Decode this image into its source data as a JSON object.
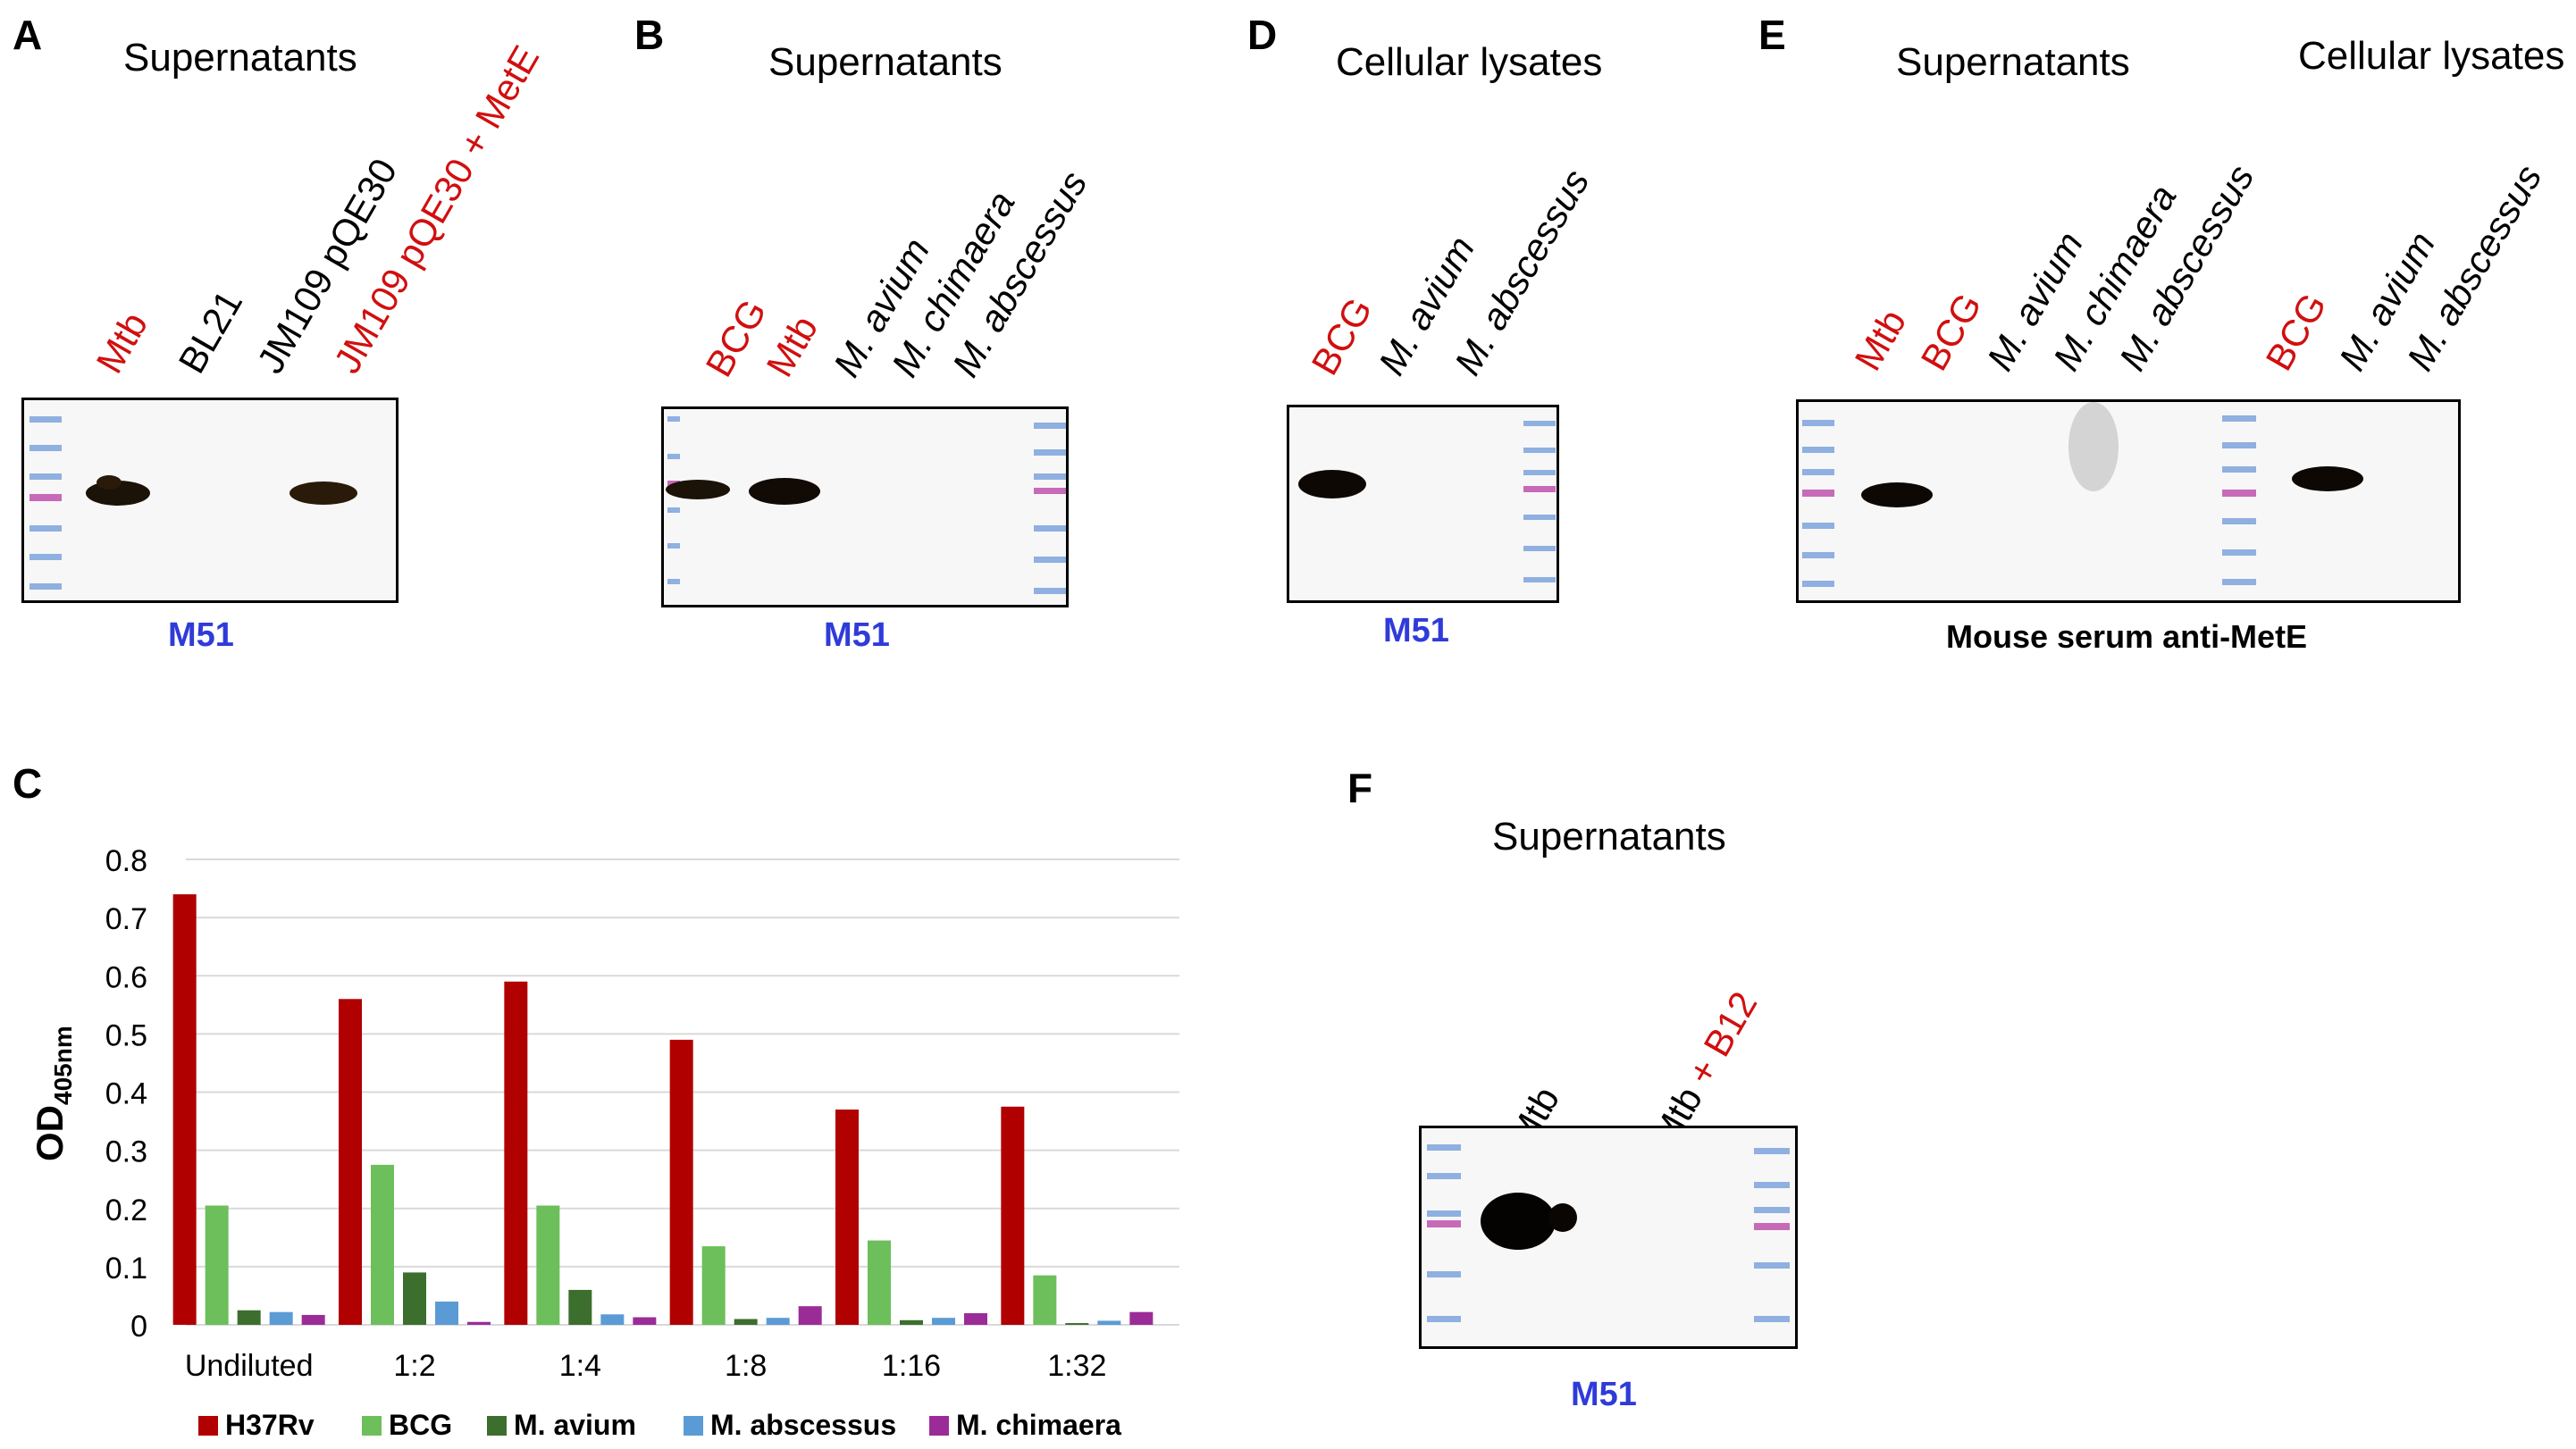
{
  "panels": {
    "A": {
      "letter": "A",
      "title": "Supernatants",
      "lanes": [
        "Mtb",
        "BL21",
        "JM109 pQE30",
        "JM109 pQE30 + MetE"
      ],
      "antibody": "M51"
    },
    "B": {
      "letter": "B",
      "title": "Supernatants",
      "lanes": [
        "BCG",
        "Mtb",
        "M. avium",
        "M. chimaera",
        "M. abscessus"
      ],
      "antibody": "M51"
    },
    "C": {
      "letter": "C"
    },
    "D": {
      "letter": "D",
      "title": "Cellular lysates",
      "lanes": [
        "BCG",
        "M. avium",
        "M. abscessus"
      ],
      "antibody": "M51"
    },
    "E": {
      "letter": "E",
      "title_left": "Supernatants",
      "title_right": "Cellular lysates",
      "lanes": [
        "Mtb",
        "BCG",
        "M. avium",
        "M. chimaera",
        "M. abscessus",
        "BCG",
        "M. avium",
        "M. abscessus"
      ],
      "antibody": "Mouse serum anti-MetE"
    },
    "F": {
      "letter": "F",
      "title": "Supernatants",
      "lane1": "Mtb",
      "lane2_base": "Mtb",
      "lane2_add": " + B12",
      "antibody": "M51"
    }
  },
  "colors": {
    "red_label": "#d10f0f",
    "antibody_blue": "#2f3bd9"
  },
  "chart_data": {
    "type": "bar",
    "ylabel": "OD",
    "ylabel_sub": "405nm",
    "ylim": [
      0,
      0.8
    ],
    "yticks": [
      "0",
      "0.1",
      "0.2",
      "0.3",
      "0.4",
      "0.5",
      "0.6",
      "0.7",
      "0.8"
    ],
    "grid": true,
    "categories": [
      "Undiluted",
      "1:2",
      "1:4",
      "1:8",
      "1:16",
      "1:32"
    ],
    "series": [
      {
        "name": "H37Rv",
        "color": "#b00000",
        "values": [
          0.74,
          0.56,
          0.59,
          0.49,
          0.37,
          0.375
        ]
      },
      {
        "name": "BCG",
        "color": "#6cbf5b",
        "values": [
          0.205,
          0.275,
          0.205,
          0.135,
          0.145,
          0.085
        ]
      },
      {
        "name": "M. avium",
        "color": "#3c6e2d",
        "values": [
          0.025,
          0.09,
          0.06,
          0.01,
          0.008,
          0.003
        ]
      },
      {
        "name": "M. abscessus",
        "color": "#5b9bd5",
        "values": [
          0.022,
          0.04,
          0.018,
          0.012,
          0.012,
          0.007
        ]
      },
      {
        "name": "M. chimaera",
        "color": "#9b2c97",
        "values": [
          0.017,
          0.005,
          0.013,
          0.032,
          0.02,
          0.022
        ]
      }
    ]
  }
}
